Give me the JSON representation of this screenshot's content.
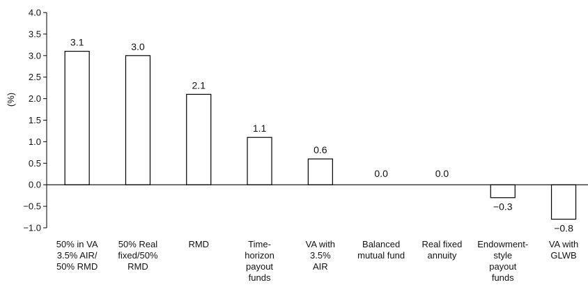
{
  "chart_data": {
    "type": "bar",
    "title": "",
    "xlabel": "",
    "ylabel": "(%)",
    "ylim": [
      -1.0,
      4.0
    ],
    "yticks": [
      -1.0,
      -0.5,
      0.0,
      0.5,
      1.0,
      1.5,
      2.0,
      2.5,
      3.0,
      3.5,
      4.0
    ],
    "ytick_labels": [
      "−1.0",
      "−0.5",
      "0.0",
      "0.5",
      "1.0",
      "1.5",
      "2.0",
      "2.5",
      "3.0",
      "3.5",
      "4.0"
    ],
    "grid": false,
    "legend": "none",
    "bar_fill": "#ffffff",
    "bar_stroke": "#000000",
    "categories": [
      [
        "50% in VA",
        "3.5% AIR/",
        "50% RMD"
      ],
      [
        "50% Real",
        "fixed/50%",
        "RMD"
      ],
      [
        "RMD"
      ],
      [
        "Time-",
        "horizon",
        "payout",
        "funds"
      ],
      [
        "VA with",
        "3.5%",
        "AIR"
      ],
      [
        "Balanced",
        "mutual fund"
      ],
      [
        "Real fixed",
        "annuity"
      ],
      [
        "Endowment-",
        "style",
        "payout",
        "funds"
      ],
      [
        "VA with",
        "GLWB"
      ]
    ],
    "values": [
      3.1,
      3.0,
      2.1,
      1.1,
      0.6,
      0.0,
      0.0,
      -0.3,
      -0.8
    ],
    "value_labels": [
      "3.1",
      "3.0",
      "2.1",
      "1.1",
      "0.6",
      "0.0",
      "0.0",
      "−0.3",
      "−0.8"
    ]
  }
}
